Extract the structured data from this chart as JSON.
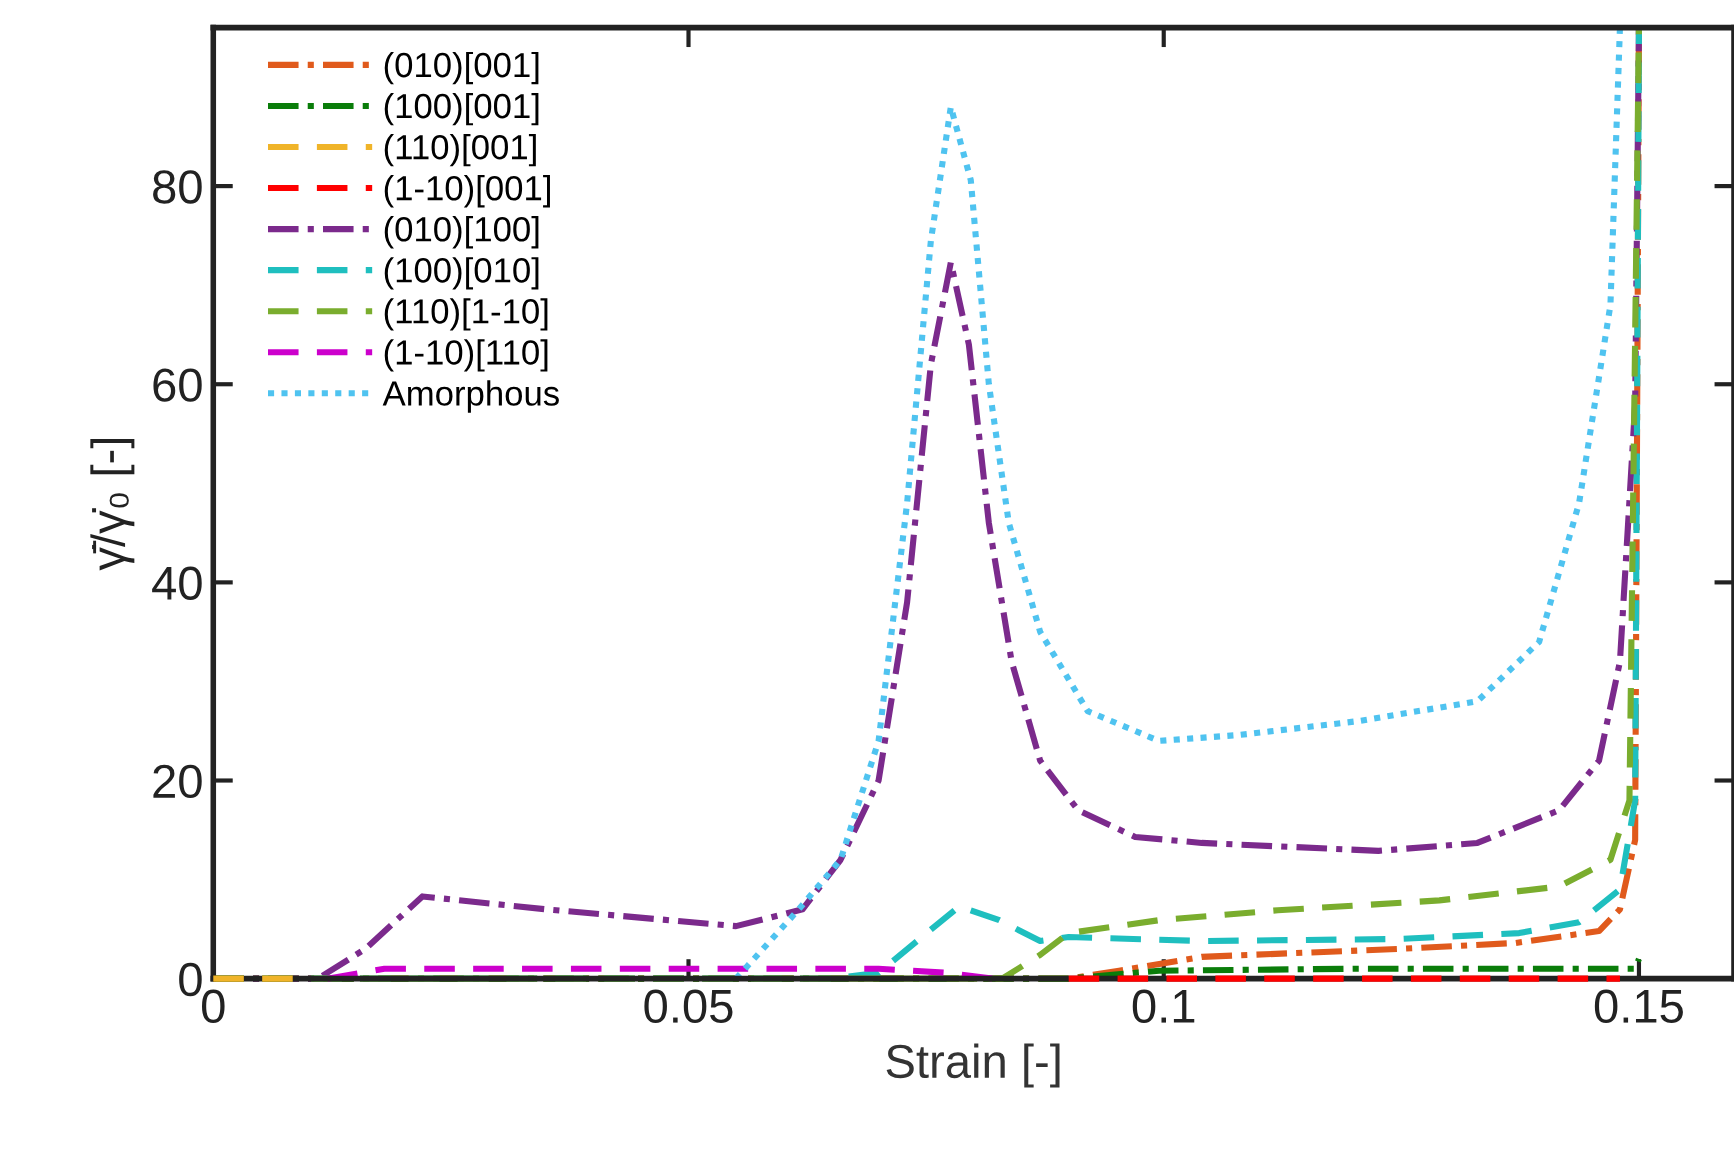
{
  "chart_data": {
    "type": "line",
    "xlabel": "Strain [-]",
    "ylabel": "γ̇̄/γ̇₀ [-]",
    "xlim": [
      0,
      0.16
    ],
    "ylim": [
      0,
      96
    ],
    "xticks": [
      0,
      0.05,
      0.1,
      0.15
    ],
    "yticks": [
      0,
      20,
      40,
      60,
      80
    ],
    "grid": false,
    "legend": "top left",
    "marker": "none",
    "series": [
      {
        "name": "(010)[001]",
        "color": "#e05a1c",
        "line_style": "dashdot",
        "x": [
          0,
          0.09,
          0.0953,
          0.104,
          0.1247,
          0.137,
          0.1458,
          0.148,
          0.1496,
          0.15
        ],
        "values": [
          0,
          0,
          0.8,
          2.2,
          3,
          3.6,
          4.8,
          7,
          14,
          96
        ]
      },
      {
        "name": "(100)[001]",
        "color": "#0a7d0a",
        "line_style": "dashdot",
        "x": [
          0,
          0.09,
          0.0995,
          0.12,
          0.1496,
          0.15
        ],
        "values": [
          0,
          0,
          0.8,
          1,
          1,
          2
        ]
      },
      {
        "name": "(110)[001]",
        "color": "#f0b429",
        "line_style": "dashed",
        "x": [
          0,
          0.01
        ],
        "values": [
          0,
          0
        ]
      },
      {
        "name": "(1-10)[001]",
        "color": "#ff0000",
        "line_style": "dashed",
        "x": [
          0.09,
          0.148
        ],
        "values": [
          0,
          0
        ]
      },
      {
        "name": "(010)[100]",
        "color": "#7b2a8c",
        "line_style": "dashdot",
        "x": [
          0,
          0.011,
          0.016,
          0.022,
          0.035,
          0.055,
          0.062,
          0.066,
          0.07,
          0.073,
          0.0755,
          0.0776,
          0.0795,
          0.0816,
          0.084,
          0.087,
          0.091,
          0.097,
          0.104,
          0.1226,
          0.133,
          0.1416,
          0.1458,
          0.148,
          0.1496,
          0.15
        ],
        "values": [
          0,
          0,
          3,
          8.3,
          7,
          5.3,
          7,
          12,
          20,
          38,
          62,
          72.3,
          64,
          46,
          32,
          22,
          17,
          14.3,
          13.7,
          12.9,
          13.7,
          17,
          22,
          32,
          58,
          96
        ]
      },
      {
        "name": "(100)[010]",
        "color": "#1fbfbf",
        "line_style": "dashed",
        "x": [
          0,
          0.065,
          0.07,
          0.0743,
          0.0785,
          0.0827,
          0.087,
          0.09,
          0.104,
          0.1247,
          0.1374,
          0.1437,
          0.148,
          0.1496,
          0.15
        ],
        "values": [
          0,
          0,
          0.6,
          4,
          7.3,
          5.9,
          3.8,
          4.2,
          3.8,
          4,
          4.6,
          5.7,
          9,
          18,
          96
        ]
      },
      {
        "name": "(110)[1-10]",
        "color": "#7aad2e",
        "line_style": "dashed",
        "x": [
          0,
          0.083,
          0.087,
          0.09,
          0.0995,
          0.112,
          0.129,
          0.1416,
          0.147,
          0.149,
          0.15
        ],
        "values": [
          0,
          0,
          2.4,
          4.6,
          5.9,
          6.9,
          7.9,
          9.3,
          12,
          18,
          96
        ]
      },
      {
        "name": "(1-10)[110]",
        "color": "#cc00cc",
        "line_style": "dashed",
        "x": [
          0.012,
          0.018,
          0.04,
          0.07,
          0.077,
          0.082
        ],
        "values": [
          0,
          1,
          1,
          1,
          0.6,
          0
        ]
      },
      {
        "name": "Amorphous",
        "color": "#4fc3f0",
        "line_style": "dotted",
        "x": [
          0.055,
          0.0616,
          0.066,
          0.07,
          0.073,
          0.0755,
          0.0776,
          0.0797,
          0.0816,
          0.0837,
          0.087,
          0.092,
          0.0995,
          0.108,
          0.1205,
          0.133,
          0.1395,
          0.1437,
          0.147,
          0.148
        ],
        "values": [
          0,
          7,
          12,
          24,
          48,
          74.5,
          88,
          80.6,
          60,
          46,
          35,
          27,
          24,
          24.6,
          26,
          28,
          34,
          48,
          68,
          96
        ]
      }
    ]
  }
}
